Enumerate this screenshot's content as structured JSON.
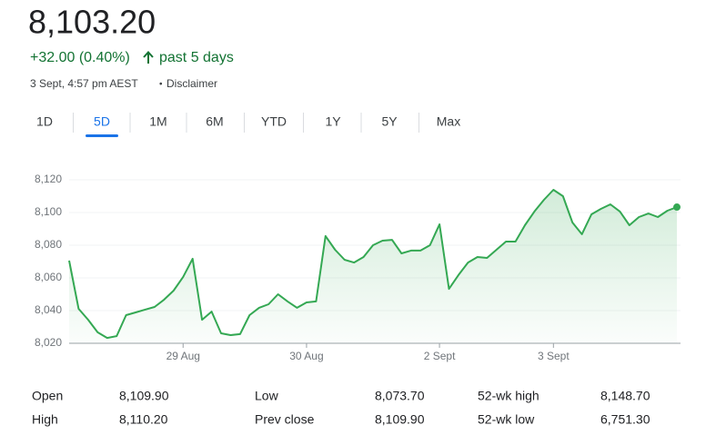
{
  "header": {
    "price": "8,103.20",
    "change": "+32.00 (0.40%)",
    "period": "past 5 days",
    "timestamp": "3 Sept, 4:57 pm AEST",
    "separator": "•",
    "disclaimer": "Disclaimer"
  },
  "tabs": {
    "items": [
      "1D",
      "5D",
      "1M",
      "6M",
      "YTD",
      "1Y",
      "5Y",
      "Max"
    ],
    "selected": 1
  },
  "chart_data": {
    "type": "line",
    "color": "#34a853",
    "grid": true,
    "categories": [
      null,
      null,
      null,
      null,
      null,
      null,
      null,
      null,
      null,
      null,
      null,
      null,
      "29 Aug",
      null,
      null,
      null,
      null,
      null,
      null,
      null,
      null,
      null,
      null,
      null,
      null,
      "30 Aug",
      null,
      null,
      null,
      null,
      null,
      null,
      null,
      null,
      null,
      null,
      null,
      null,
      null,
      "2 Sept",
      null,
      null,
      null,
      null,
      null,
      null,
      null,
      null,
      null,
      null,
      null,
      "3 Sept",
      null,
      null,
      null,
      null,
      null,
      null,
      null,
      null,
      null,
      null,
      null,
      null,
      null
    ],
    "series": [
      {
        "name": "Price",
        "color": "#34a853",
        "values": [
          8070.6,
          8041.1,
          8034.4,
          8026.7,
          8023.3,
          8024.4,
          8037.2,
          8038.9,
          8040.6,
          8042.2,
          8046.7,
          8052.2,
          8060.6,
          8071.7,
          8034.4,
          8039.4,
          8026.1,
          8025.0,
          8025.6,
          8037.2,
          8041.7,
          8043.9,
          8050.0,
          8045.6,
          8041.7,
          8045.0,
          8045.6,
          8085.6,
          8077.2,
          8071.1,
          8069.4,
          8072.8,
          8080.0,
          8082.8,
          8083.3,
          8075.0,
          8076.7,
          8076.7,
          8080.0,
          8092.8,
          8053.3,
          8061.7,
          8069.4,
          8072.8,
          8072.2,
          8077.2,
          8082.2,
          8082.2,
          8092.2,
          8100.6,
          8107.8,
          8113.9,
          8110.0,
          8093.9,
          8086.7,
          8098.9,
          8102.2,
          8105.0,
          8100.6,
          8092.2,
          8097.2,
          8099.4,
          8097.2,
          8101.1,
          8103.3
        ]
      }
    ],
    "ylim": [
      8020,
      8125
    ],
    "yticks": [
      {
        "value": 8020,
        "label": "8,020"
      },
      {
        "value": 8040,
        "label": "8,040"
      },
      {
        "value": 8060,
        "label": "8,060"
      },
      {
        "value": 8080,
        "label": "8,080"
      },
      {
        "value": 8100,
        "label": "8,100"
      },
      {
        "value": 8120,
        "label": "8,120"
      }
    ]
  },
  "stats": {
    "rows": [
      [
        "Open",
        "8,109.90",
        "Low",
        "8,073.70",
        "52-wk high",
        "8,148.70"
      ],
      [
        "High",
        "8,110.20",
        "Prev close",
        "8,109.90",
        "52-wk low",
        "6,751.30"
      ]
    ]
  }
}
